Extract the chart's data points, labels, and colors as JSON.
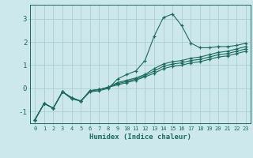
{
  "xlabel": "Humidex (Indice chaleur)",
  "bg_color": "#cce8ec",
  "grid_color": "#aacdd4",
  "line_color": "#1a6b5a",
  "xlim": [
    -0.5,
    23.5
  ],
  "ylim": [
    -1.5,
    3.6
  ],
  "yticks": [
    -1,
    0,
    1,
    2,
    3
  ],
  "xticks": [
    0,
    1,
    2,
    3,
    4,
    5,
    6,
    7,
    8,
    9,
    10,
    11,
    12,
    13,
    14,
    15,
    16,
    17,
    18,
    19,
    20,
    21,
    22,
    23
  ],
  "line1_x": [
    0,
    1,
    2,
    3,
    4,
    5,
    6,
    7,
    8,
    9,
    10,
    11,
    12,
    13,
    14,
    15,
    16,
    17,
    18,
    19,
    20,
    21,
    22,
    23
  ],
  "line1_y": [
    -1.35,
    -0.65,
    -0.85,
    -0.15,
    -0.45,
    -0.55,
    -0.15,
    -0.1,
    0.0,
    0.4,
    0.6,
    0.75,
    1.2,
    2.25,
    3.05,
    3.2,
    2.7,
    1.95,
    1.75,
    1.75,
    1.8,
    1.8,
    1.85,
    1.95
  ],
  "line2_x": [
    0,
    1,
    2,
    3,
    4,
    5,
    6,
    7,
    8,
    9,
    10,
    11,
    12,
    13,
    14,
    15,
    16,
    17,
    18,
    19,
    20,
    21,
    22,
    23
  ],
  "line2_y": [
    -1.35,
    -0.65,
    -0.85,
    -0.15,
    -0.4,
    -0.55,
    -0.1,
    -0.05,
    0.05,
    0.25,
    0.35,
    0.45,
    0.6,
    0.85,
    1.05,
    1.15,
    1.2,
    1.3,
    1.35,
    1.45,
    1.55,
    1.6,
    1.7,
    1.8
  ],
  "line3_x": [
    0,
    1,
    2,
    3,
    4,
    5,
    6,
    7,
    8,
    9,
    10,
    11,
    12,
    13,
    14,
    15,
    16,
    17,
    18,
    19,
    20,
    21,
    22,
    23
  ],
  "line3_y": [
    -1.35,
    -0.65,
    -0.85,
    -0.15,
    -0.4,
    -0.55,
    -0.1,
    -0.05,
    0.05,
    0.2,
    0.3,
    0.4,
    0.55,
    0.75,
    0.95,
    1.05,
    1.1,
    1.2,
    1.25,
    1.35,
    1.45,
    1.5,
    1.6,
    1.7
  ],
  "line4_x": [
    0,
    1,
    2,
    3,
    4,
    5,
    6,
    7,
    8,
    9,
    10,
    11,
    12,
    13,
    14,
    15,
    16,
    17,
    18,
    19,
    20,
    21,
    22,
    23
  ],
  "line4_y": [
    -1.35,
    -0.65,
    -0.85,
    -0.15,
    -0.4,
    -0.55,
    -0.1,
    -0.05,
    0.05,
    0.15,
    0.25,
    0.35,
    0.5,
    0.65,
    0.85,
    0.95,
    1.0,
    1.1,
    1.15,
    1.25,
    1.35,
    1.4,
    1.5,
    1.6
  ]
}
